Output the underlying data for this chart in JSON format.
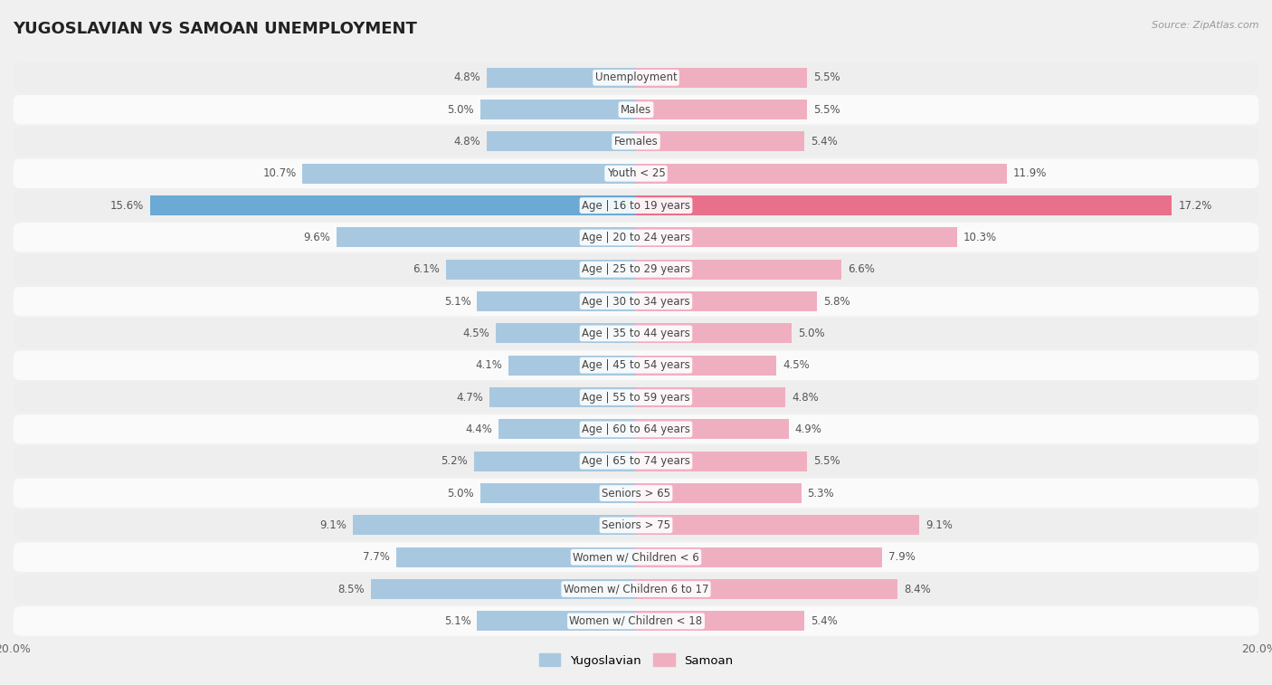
{
  "title": "YUGOSLAVIAN VS SAMOAN UNEMPLOYMENT",
  "source": "Source: ZipAtlas.com",
  "categories": [
    "Unemployment",
    "Males",
    "Females",
    "Youth < 25",
    "Age | 16 to 19 years",
    "Age | 20 to 24 years",
    "Age | 25 to 29 years",
    "Age | 30 to 34 years",
    "Age | 35 to 44 years",
    "Age | 45 to 54 years",
    "Age | 55 to 59 years",
    "Age | 60 to 64 years",
    "Age | 65 to 74 years",
    "Seniors > 65",
    "Seniors > 75",
    "Women w/ Children < 6",
    "Women w/ Children 6 to 17",
    "Women w/ Children < 18"
  ],
  "yugoslavian": [
    4.8,
    5.0,
    4.8,
    10.7,
    15.6,
    9.6,
    6.1,
    5.1,
    4.5,
    4.1,
    4.7,
    4.4,
    5.2,
    5.0,
    9.1,
    7.7,
    8.5,
    5.1
  ],
  "samoan": [
    5.5,
    5.5,
    5.4,
    11.9,
    17.2,
    10.3,
    6.6,
    5.8,
    5.0,
    4.5,
    4.8,
    4.9,
    5.5,
    5.3,
    9.1,
    7.9,
    8.4,
    5.4
  ],
  "yugoslav_color": "#a8c8e0",
  "samoan_color": "#f0afc0",
  "yugoslav_highlight": "#6aaad4",
  "samoan_highlight": "#e8708a",
  "axis_limit": 20.0,
  "background_color": "#f0f0f0",
  "row_color_light": "#fafafa",
  "row_color_dark": "#eeeeee",
  "highlight_idx": 4,
  "bar_height": 0.62,
  "label_fontsize": 8.5,
  "title_fontsize": 13
}
